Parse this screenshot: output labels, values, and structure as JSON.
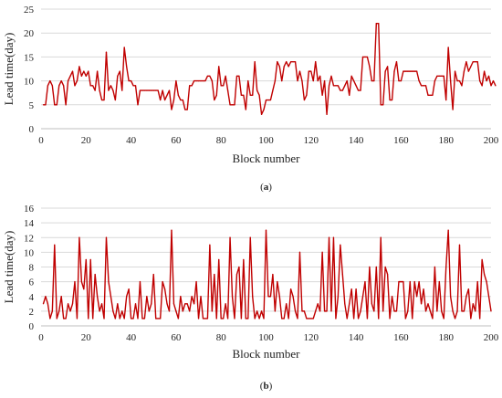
{
  "chart_data": [
    {
      "type": "line",
      "caption_prefix": "(",
      "caption_letter": "a",
      "caption_suffix": ")",
      "xlabel": "Block number",
      "ylabel": "Lead time(day)",
      "xlim": [
        0,
        200
      ],
      "ylim": [
        0,
        25
      ],
      "xticks": [
        0,
        20,
        40,
        60,
        80,
        100,
        120,
        140,
        160,
        180,
        200
      ],
      "yticks": [
        0,
        5,
        10,
        15,
        20,
        25
      ],
      "grid": "horizontal",
      "color": "#c00000",
      "series": [
        {
          "x_start": 1,
          "values": [
            5,
            5,
            9,
            10,
            9,
            5,
            5,
            9,
            10,
            9,
            5,
            10,
            11,
            12,
            9,
            10,
            13,
            11,
            12,
            11,
            12,
            9,
            9,
            8,
            12,
            8,
            6,
            6,
            16,
            8,
            9,
            8,
            6,
            11,
            12,
            8,
            17,
            13,
            10,
            10,
            9,
            9,
            5,
            8,
            8,
            8,
            8,
            8,
            8,
            8,
            8,
            8,
            6,
            8,
            6,
            7,
            8,
            4,
            6,
            10,
            7,
            6,
            6,
            4,
            4,
            9,
            9,
            10,
            10,
            10,
            10,
            10,
            10,
            11,
            11,
            10,
            6,
            7,
            13,
            9,
            9,
            11,
            8,
            5,
            5,
            5,
            11,
            11,
            7,
            7,
            4,
            10,
            7,
            7,
            14,
            8,
            7,
            3,
            4,
            6,
            6,
            6,
            8,
            10,
            14,
            13,
            10,
            13,
            14,
            13,
            14,
            14,
            14,
            10,
            12,
            10,
            6,
            7,
            12,
            12,
            10,
            14,
            10,
            11,
            7,
            10,
            3,
            9,
            11,
            9,
            9,
            9,
            8,
            8,
            9,
            10,
            7,
            11,
            10,
            9,
            8,
            8,
            15,
            15,
            15,
            13,
            10,
            10,
            22,
            22,
            5,
            5,
            12,
            13,
            6,
            6,
            12,
            14,
            10,
            10,
            12,
            12,
            12,
            12,
            12,
            12,
            12,
            10,
            9,
            9,
            9,
            7,
            7,
            7,
            10,
            11,
            11,
            11,
            11,
            6,
            17,
            10,
            4,
            12,
            10,
            10,
            9,
            12,
            14,
            12,
            13,
            14,
            14,
            14,
            10,
            9,
            12,
            10,
            11,
            9,
            10,
            9
          ]
        }
      ]
    },
    {
      "type": "line",
      "caption_prefix": "(",
      "caption_letter": "b",
      "caption_suffix": ")",
      "xlabel": "Block number",
      "ylabel": "Lead time(day)",
      "xlim": [
        0,
        200
      ],
      "ylim": [
        0,
        16
      ],
      "xticks": [
        0,
        20,
        40,
        60,
        80,
        100,
        120,
        140,
        160,
        180,
        200
      ],
      "yticks": [
        0,
        2,
        4,
        6,
        8,
        10,
        12,
        14,
        16
      ],
      "grid": "horizontal",
      "color": "#c00000",
      "series": [
        {
          "x_start": 1,
          "values": [
            3,
            4,
            3,
            1,
            2,
            11,
            1,
            2,
            4,
            1,
            1,
            3,
            2,
            3,
            6,
            1,
            12,
            6,
            5,
            9,
            1,
            9,
            1,
            7,
            4,
            2,
            3,
            1,
            12,
            6,
            4,
            2,
            1,
            3,
            1,
            2,
            1,
            4,
            5,
            1,
            1,
            3,
            1,
            6,
            1,
            1,
            4,
            2,
            3,
            7,
            1,
            1,
            1,
            6,
            5,
            3,
            2,
            13,
            3,
            2,
            1,
            4,
            2,
            3,
            3,
            2,
            4,
            3,
            6,
            1,
            4,
            1,
            1,
            1,
            11,
            2,
            7,
            1,
            9,
            1,
            1,
            3,
            1,
            12,
            4,
            1,
            7,
            8,
            1,
            9,
            1,
            1,
            12,
            4,
            1,
            2,
            1,
            2,
            1,
            13,
            4,
            4,
            7,
            2,
            6,
            4,
            1,
            1,
            3,
            1,
            5,
            4,
            2,
            1,
            10,
            2,
            2,
            1,
            1,
            1,
            1,
            2,
            3,
            2,
            10,
            2,
            2,
            12,
            2,
            12,
            1,
            4,
            11,
            7,
            3,
            1,
            3,
            5,
            1,
            5,
            1,
            2,
            4,
            6,
            1,
            8,
            3,
            2,
            8,
            1,
            12,
            2,
            8,
            7,
            1,
            4,
            2,
            2,
            6,
            6,
            6,
            1,
            2,
            6,
            1,
            6,
            4,
            6,
            3,
            5,
            2,
            3,
            2,
            1,
            8,
            2,
            6,
            2,
            1,
            8,
            13,
            4,
            2,
            1,
            2,
            11,
            2,
            2,
            4,
            5,
            1,
            3,
            2,
            6,
            1,
            9,
            7,
            6,
            4,
            2
          ]
        }
      ]
    }
  ]
}
